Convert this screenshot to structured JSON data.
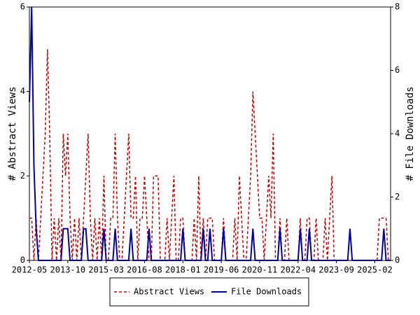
{
  "chart_data": {
    "type": "line",
    "ylabel": "# Abstract Views",
    "y2label": "# File Downloads",
    "x": [
      "2012-05",
      "2012-06",
      "2012-07",
      "2012-08",
      "2012-09",
      "2012-10",
      "2012-11",
      "2012-12",
      "2013-01",
      "2013-02",
      "2013-03",
      "2013-04",
      "2013-05",
      "2013-06",
      "2013-07",
      "2013-08",
      "2013-09",
      "2013-10",
      "2013-11",
      "2013-12",
      "2014-01",
      "2014-02",
      "2014-03",
      "2014-04",
      "2014-05",
      "2014-06",
      "2014-07",
      "2014-08",
      "2014-09",
      "2014-10",
      "2014-11",
      "2014-12",
      "2015-01",
      "2015-02",
      "2015-03",
      "2015-04",
      "2015-05",
      "2015-06",
      "2015-07",
      "2015-08",
      "2015-09",
      "2015-10",
      "2015-11",
      "2015-12",
      "2016-01",
      "2016-02",
      "2016-03",
      "2016-04",
      "2016-05",
      "2016-06",
      "2016-07",
      "2016-08",
      "2016-09",
      "2016-10",
      "2016-11",
      "2016-12",
      "2017-01",
      "2017-02",
      "2017-03",
      "2017-04",
      "2017-05",
      "2017-06",
      "2017-07",
      "2017-08",
      "2017-09",
      "2017-10",
      "2017-11",
      "2017-12",
      "2018-01",
      "2018-02",
      "2018-03",
      "2018-04",
      "2018-05",
      "2018-06",
      "2018-07",
      "2018-08",
      "2018-09",
      "2018-10",
      "2018-11",
      "2018-12",
      "2019-01",
      "2019-02",
      "2019-03",
      "2019-04",
      "2019-05",
      "2019-06",
      "2019-07",
      "2019-08",
      "2019-09",
      "2019-10",
      "2019-11",
      "2019-12",
      "2020-01",
      "2020-02",
      "2020-03",
      "2020-04",
      "2020-05",
      "2020-06",
      "2020-07",
      "2020-08",
      "2020-09",
      "2020-10",
      "2020-11",
      "2020-12",
      "2021-01",
      "2021-02",
      "2021-03",
      "2021-04",
      "2021-05",
      "2021-06",
      "2021-07",
      "2021-08",
      "2021-09",
      "2021-10",
      "2021-11",
      "2021-12",
      "2022-01",
      "2022-02",
      "2022-03",
      "2022-04",
      "2022-05",
      "2022-06",
      "2022-07",
      "2022-08",
      "2022-09",
      "2022-10",
      "2022-11",
      "2022-12",
      "2023-01",
      "2023-02",
      "2023-03",
      "2023-04",
      "2023-05",
      "2023-06",
      "2023-07",
      "2023-08",
      "2023-09",
      "2023-10",
      "2023-11",
      "2023-12",
      "2024-01",
      "2024-02",
      "2024-03",
      "2024-04",
      "2024-05",
      "2024-06",
      "2024-07",
      "2024-08",
      "2024-09",
      "2024-10",
      "2024-11",
      "2024-12",
      "2025-01",
      "2025-02",
      "2025-03",
      "2025-04",
      "2025-05",
      "2025-06",
      "2025-07",
      "2025-08",
      "2025-09"
    ],
    "series": [
      {
        "name": "Abstract Views",
        "color": "#cc0000",
        "dash": true,
        "values": [
          1,
          1,
          0,
          1,
          0,
          1,
          2,
          3,
          5,
          3,
          0,
          1,
          0,
          1,
          0,
          3,
          2,
          3,
          1,
          0,
          1,
          0,
          1,
          0,
          1,
          2,
          3,
          1,
          0,
          1,
          0,
          1,
          0,
          2,
          0,
          0,
          1,
          1,
          3,
          1,
          0,
          0,
          1,
          2,
          3,
          1,
          1,
          2,
          0,
          1,
          1,
          2,
          1,
          0,
          0,
          2,
          2,
          2,
          0,
          0,
          0,
          1,
          0,
          1,
          2,
          0,
          0,
          1,
          1,
          0,
          0,
          0,
          0,
          1,
          0,
          2,
          0,
          1,
          0,
          1,
          1,
          1,
          0,
          0,
          0,
          0,
          1,
          0,
          0,
          0,
          0,
          1,
          0,
          2,
          1,
          0,
          0,
          1,
          2,
          4,
          3,
          2,
          1,
          1,
          0,
          1,
          2,
          1,
          3,
          0,
          0,
          1,
          0,
          0,
          1,
          0,
          0,
          0,
          0,
          0,
          1,
          0,
          0,
          1,
          1,
          0,
          0,
          1,
          0,
          0,
          0,
          1,
          0,
          1,
          2,
          0,
          0,
          0,
          0,
          0,
          0,
          0,
          0,
          0,
          0,
          0,
          0,
          0,
          0,
          0,
          0,
          0,
          0,
          0,
          0,
          1,
          1,
          1,
          1,
          0,
          0
        ]
      },
      {
        "name": "File Downloads",
        "color": "#0000aa",
        "axis": "y2",
        "values": [
          5,
          8,
          3,
          1,
          0,
          0,
          0,
          0,
          0,
          0,
          0,
          0,
          0,
          0,
          0,
          1,
          1,
          1,
          0,
          0,
          0,
          0,
          0,
          0,
          1,
          1,
          0,
          0,
          0,
          0,
          0,
          0,
          0,
          1,
          0,
          0,
          0,
          0,
          1,
          0,
          0,
          0,
          0,
          0,
          0,
          1,
          0,
          0,
          0,
          0,
          0,
          0,
          0,
          1,
          0,
          0,
          0,
          0,
          0,
          0,
          0,
          0,
          0,
          0,
          0,
          0,
          0,
          0,
          1,
          0,
          0,
          0,
          0,
          0,
          0,
          0,
          0,
          1,
          0,
          0,
          1,
          0,
          0,
          0,
          0,
          0,
          1,
          0,
          0,
          0,
          0,
          0,
          0,
          0,
          0,
          0,
          0,
          0,
          0,
          1,
          0,
          0,
          0,
          0,
          0,
          0,
          0,
          0,
          0,
          0,
          0,
          1,
          0,
          0,
          0,
          0,
          0,
          0,
          0,
          0,
          1,
          0,
          0,
          0,
          1,
          0,
          0,
          0,
          0,
          0,
          0,
          0,
          0,
          0,
          0,
          0,
          0,
          0,
          0,
          0,
          0,
          0,
          1,
          0,
          0,
          0,
          0,
          0,
          0,
          0,
          0,
          0,
          0,
          0,
          0,
          0,
          0,
          1,
          0,
          0,
          0
        ]
      }
    ],
    "xticks": [
      "2012-05",
      "2013-10",
      "2015-03",
      "2016-08",
      "2018-01",
      "2019-06",
      "2020-11",
      "2022-04",
      "2023-09",
      "2025-02"
    ],
    "ylim": [
      0,
      6
    ],
    "yticks": [
      0,
      2,
      4,
      6
    ],
    "y2lim": [
      0,
      8
    ],
    "y2ticks": [
      0,
      2,
      4,
      6,
      8
    ],
    "legend": "bottom"
  }
}
